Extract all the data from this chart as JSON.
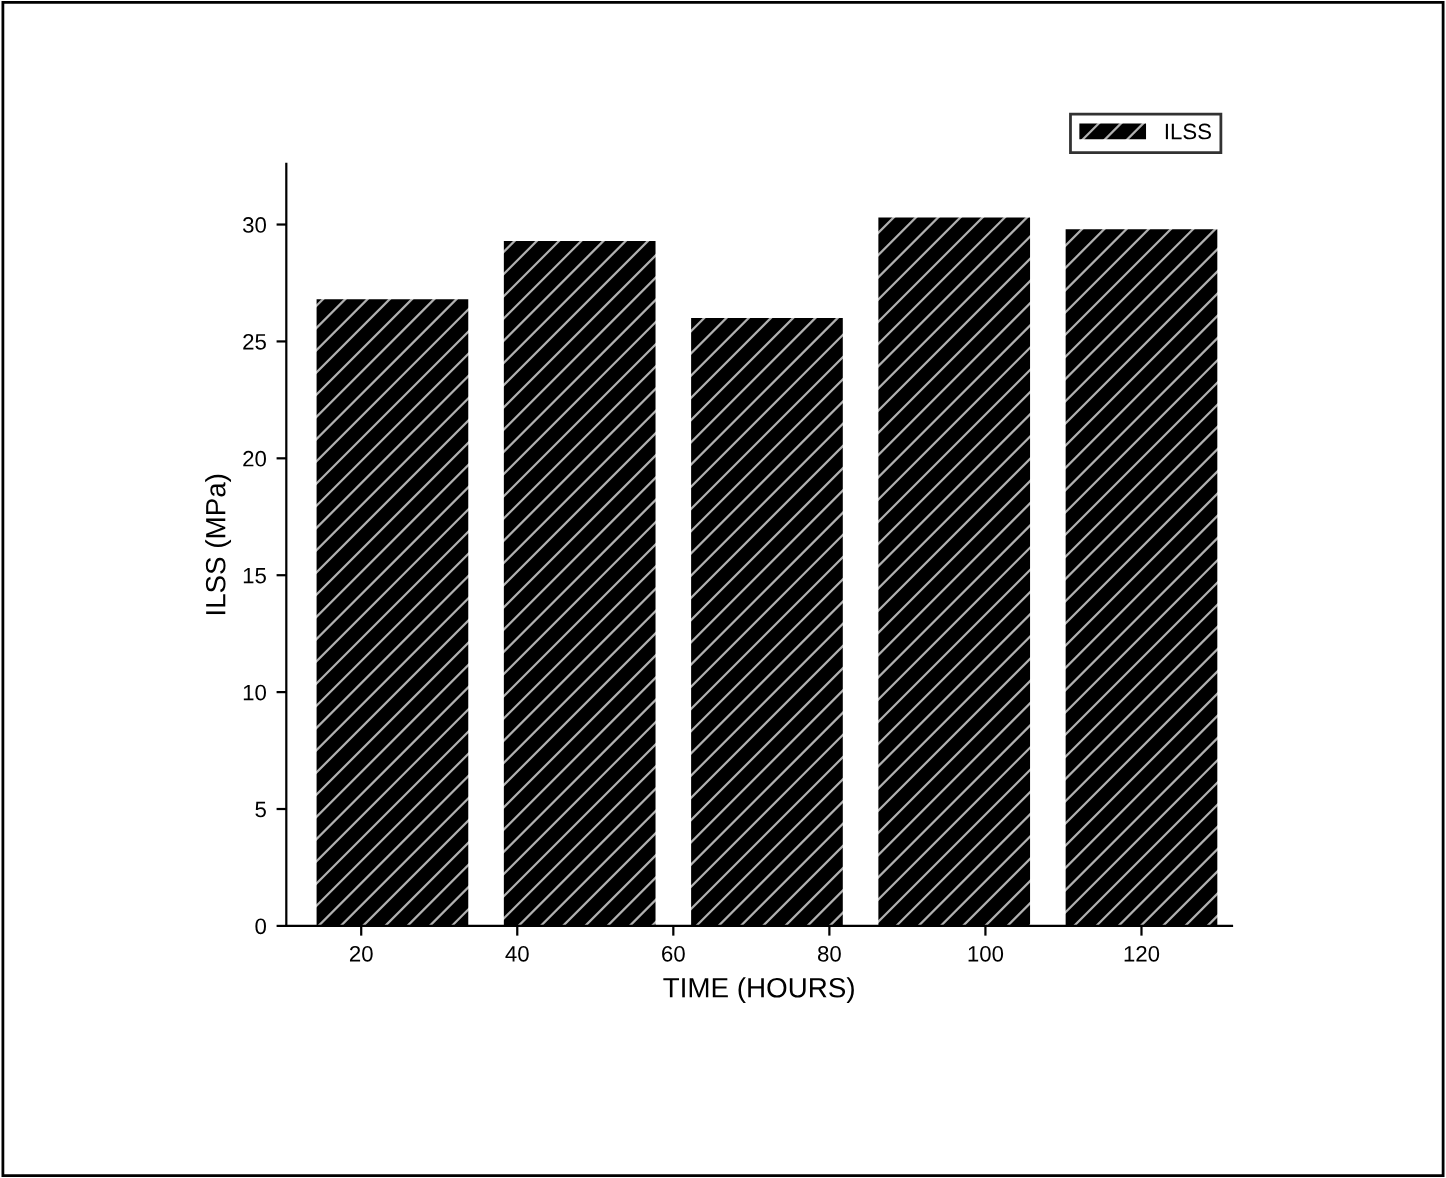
{
  "chart_data": {
    "type": "bar",
    "xlabel": "TIME (HOURS)",
    "ylabel": "ILSS (MPa)",
    "x": [
      24,
      48,
      72,
      96,
      120
    ],
    "series": [
      {
        "name": "ILSS",
        "color": "#000000",
        "values": [
          26.8,
          29.3,
          26.0,
          30.3,
          29.8
        ]
      }
    ],
    "xlim": [
      10.4,
      131.6
    ],
    "xticks": [
      20,
      40,
      60,
      80,
      100,
      120
    ],
    "ylim": [
      0,
      32.6
    ],
    "yticks": [
      0,
      5,
      10,
      15,
      20,
      25,
      30
    ],
    "grid": false,
    "legend": "top right"
  }
}
